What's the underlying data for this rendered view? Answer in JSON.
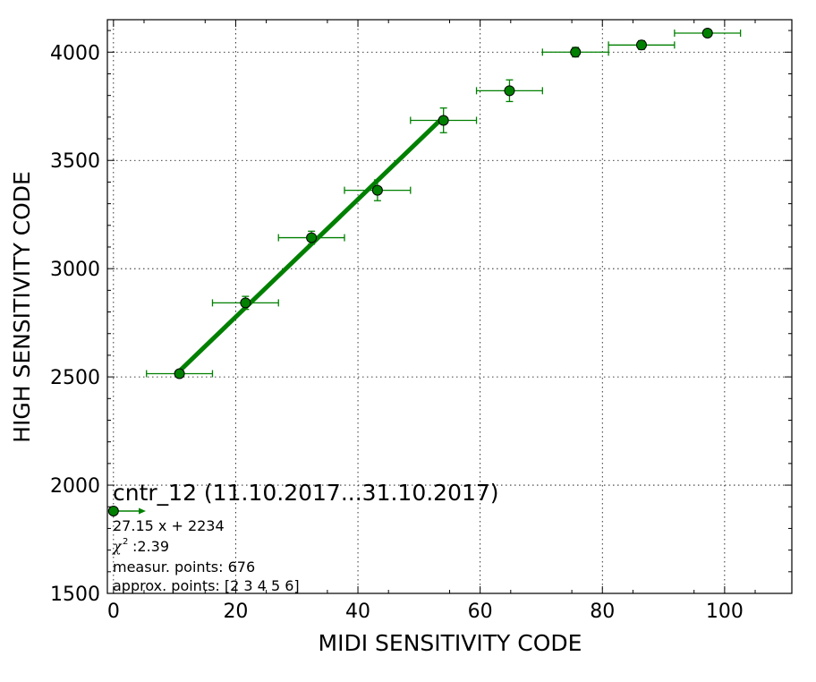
{
  "chart_data": {
    "type": "scatter",
    "title": "cntr_12 (11.10.2017...31.10.2017)",
    "xlabel": "MIDI SENSITIVITY CODE",
    "ylabel": "HIGH SENSITIVITY CODE",
    "xlim": [
      -1,
      111
    ],
    "ylim": [
      1500,
      4150
    ],
    "xticks": [
      0,
      20,
      40,
      60,
      80,
      100
    ],
    "yticks": [
      1500,
      2000,
      2500,
      3000,
      3500,
      4000
    ],
    "xtick_labels": [
      "0",
      "20",
      "40",
      "60",
      "80",
      "100"
    ],
    "ytick_labels": [
      "1500",
      "2000",
      "2500",
      "3000",
      "3500",
      "4000"
    ],
    "grid": true,
    "colors": {
      "points": "#008000",
      "fit": "#008000",
      "marker_edge": "#000000"
    },
    "points": [
      {
        "x": 10.8,
        "y": 2515,
        "xerr": 5.4,
        "yerr": 10
      },
      {
        "x": 21.6,
        "y": 2842,
        "xerr": 5.4,
        "yerr": 30
      },
      {
        "x": 32.4,
        "y": 3143,
        "xerr": 5.4,
        "yerr": 30
      },
      {
        "x": 43.2,
        "y": 3362,
        "xerr": 5.4,
        "yerr": 48
      },
      {
        "x": 54.0,
        "y": 3685,
        "xerr": 5.4,
        "yerr": 57
      },
      {
        "x": 64.8,
        "y": 3822,
        "xerr": 5.4,
        "yerr": 50
      },
      {
        "x": 75.6,
        "y": 4000,
        "xerr": 5.4,
        "yerr": 22
      },
      {
        "x": 86.4,
        "y": 4033,
        "xerr": 5.4,
        "yerr": 20
      },
      {
        "x": 97.2,
        "y": 4088,
        "xerr": 5.4,
        "yerr": 10
      }
    ],
    "fit_line": {
      "slope": 27.15,
      "intercept": 2234,
      "x_range": [
        10.8,
        54.0
      ]
    },
    "legend_marker_point": {
      "x": 0,
      "y": 1880
    },
    "annotations": {
      "fit_equation": "27.15 x + 2234",
      "chi2": ":2.39",
      "measur_points": "measur. points: 676",
      "approx_points": "approx. points: [2 3 4 5 6]"
    }
  }
}
